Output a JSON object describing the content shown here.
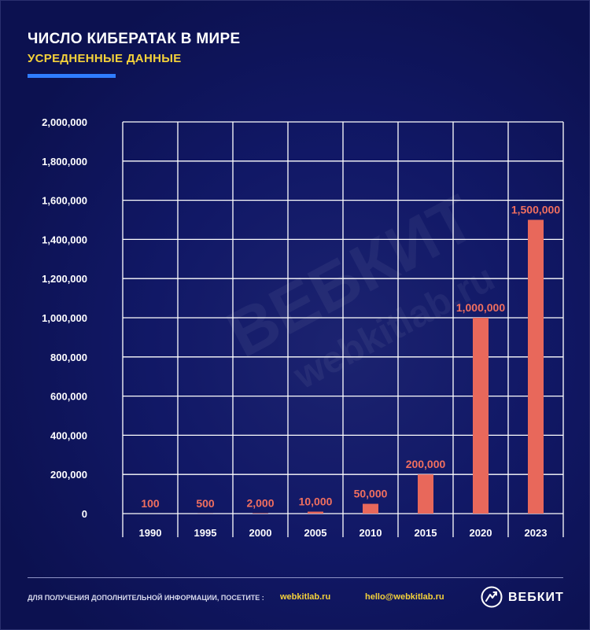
{
  "header": {
    "title": "ЧИСЛО КИБЕРАТАК В МИРЕ",
    "subtitle": "УСРЕДНЕННЫЕ ДАННЫЕ"
  },
  "watermark": {
    "brand": "ВЕБКИТ",
    "site": "webkitlab.ru"
  },
  "chart_data": {
    "type": "bar",
    "title": "ЧИСЛО КИБЕРАТАК В МИРЕ",
    "subtitle": "УСРЕДНЕННЫЕ ДАННЫЕ",
    "categories": [
      "1990",
      "1995",
      "2000",
      "2005",
      "2010",
      "2015",
      "2020",
      "2023"
    ],
    "values": [
      100,
      500,
      2000,
      10000,
      50000,
      200000,
      1000000,
      1500000
    ],
    "data_labels": [
      "100",
      "500",
      "2,000",
      "10,000",
      "50,000",
      "200,000",
      "1,000,000",
      "1,500,000"
    ],
    "ylim": [
      0,
      2000000
    ],
    "y_ticks": [
      0,
      200000,
      400000,
      600000,
      800000,
      1000000,
      1200000,
      1400000,
      1600000,
      1800000,
      2000000
    ],
    "y_tick_labels": [
      "0",
      "200,000",
      "400,000",
      "600,000",
      "800,000",
      "1,000,000",
      "1,200,000",
      "1,400,000",
      "1,600,000",
      "1,800,000",
      "2,000,000"
    ],
    "xlabel": "",
    "ylabel": "",
    "grid": true,
    "legend": "none",
    "colors": {
      "bar": "#e8685b",
      "label": "#f16f5f",
      "grid": "#ffffff",
      "background": "#0c1150"
    }
  },
  "footer": {
    "info_text": "ДЛЯ ПОЛУЧЕНИЯ ДОПОЛНИТЕЛЬНОЙ ИНФОРМАЦИИ, ПОСЕТИТЕ :",
    "website": "webkitlab.ru",
    "email": "hello@webkitlab.ru",
    "logo_icon": "webkit-logo-icon",
    "brand": "ВЕБКИТ"
  }
}
